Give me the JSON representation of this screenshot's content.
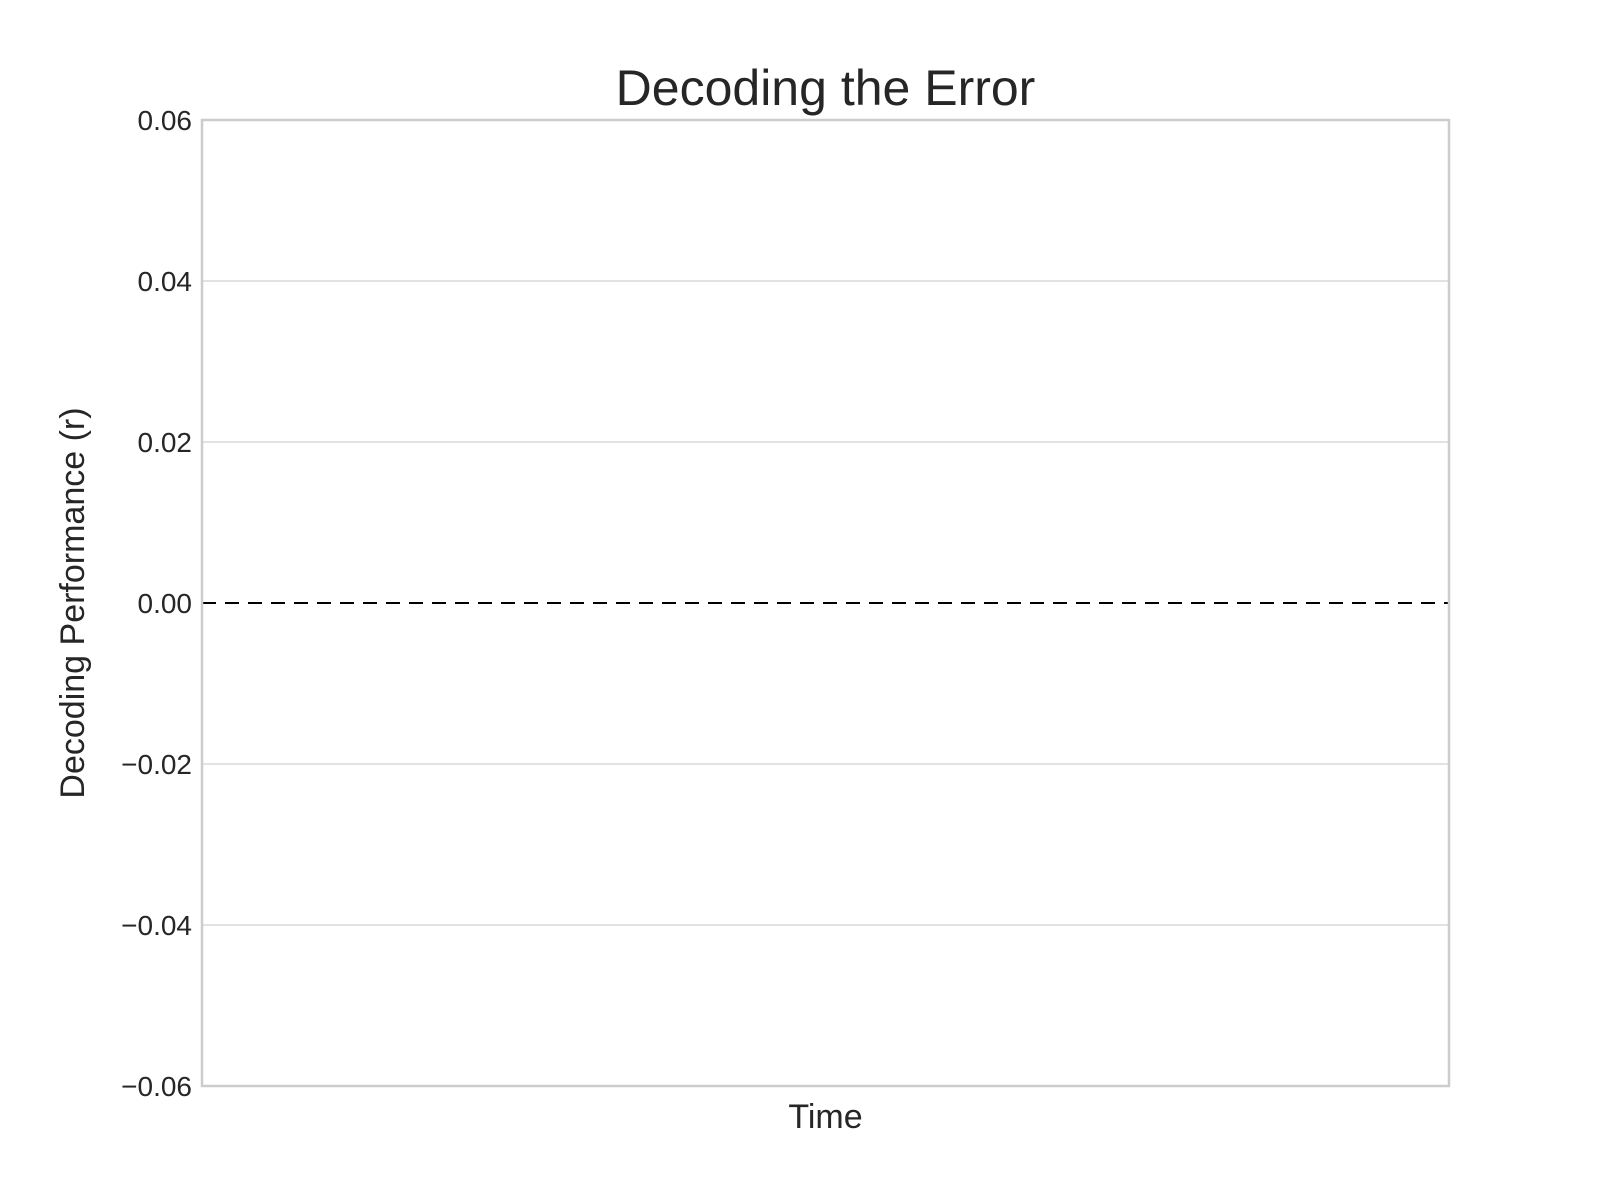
{
  "chart_data": {
    "type": "line",
    "title": "Decoding the Error",
    "xlabel": "Time",
    "ylabel": "Decoding Performance (r)",
    "ylim": [
      -0.06,
      0.06
    ],
    "yticks": [
      -0.06,
      -0.04,
      -0.02,
      0.0,
      0.02,
      0.04,
      0.06
    ],
    "ytick_labels": [
      "−0.06",
      "−0.04",
      "−0.02",
      "0.00",
      "0.02",
      "0.04",
      "0.06"
    ],
    "xticks": [],
    "series": [],
    "reference_line": {
      "y": 0.0,
      "style": "dashed",
      "color": "#000000"
    },
    "grid": true,
    "grid_axis": "y"
  }
}
